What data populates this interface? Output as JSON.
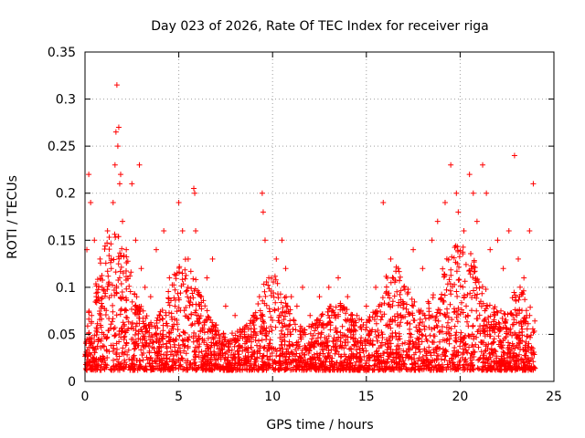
{
  "chart_data": {
    "type": "scatter",
    "title": "Day 023 of 2026, Rate Of TEC Index for receiver riga",
    "xlabel": "GPS time / hours",
    "ylabel": "ROTI / TECUs",
    "xlim": [
      0,
      25
    ],
    "ylim": [
      0,
      0.35
    ],
    "x_ticks": [
      0,
      5,
      10,
      15,
      20,
      25
    ],
    "x_tick_labels": [
      "0",
      "5",
      "10",
      "15",
      "20",
      "25"
    ],
    "y_ticks": [
      0,
      0.05,
      0.1,
      0.15,
      0.2,
      0.25,
      0.3,
      0.35
    ],
    "y_tick_labels": [
      "0",
      "0.05",
      "0.1",
      "0.15",
      "0.2",
      "0.25",
      "0.3",
      "0.35"
    ],
    "grid": true,
    "marker": "plus",
    "marker_color": "#ff0000",
    "series": [
      {
        "name": "ROTI",
        "x": [
          0.1,
          0.2,
          0.3,
          0.35,
          0.5,
          0.6,
          0.8,
          1.0,
          1.2,
          1.4,
          1.5,
          1.6,
          1.65,
          1.7,
          1.75,
          1.8,
          1.85,
          1.9,
          2.0,
          2.2,
          2.5,
          2.7,
          2.9,
          3.0,
          3.2,
          3.5,
          3.8,
          4.2,
          4.5,
          4.8,
          5.0,
          5.2,
          5.5,
          5.8,
          5.85,
          5.9,
          6.2,
          6.5,
          6.8,
          7.0,
          7.5,
          8.0,
          8.5,
          9.0,
          9.3,
          9.45,
          9.5,
          9.6,
          9.8,
          10.2,
          10.5,
          10.7,
          11.0,
          11.3,
          11.6,
          12.0,
          12.5,
          13.0,
          13.5,
          14.0,
          14.5,
          15.0,
          15.5,
          15.9,
          16.3,
          16.7,
          17.0,
          17.5,
          18.0,
          18.5,
          18.8,
          19.2,
          19.5,
          19.8,
          19.9,
          20.2,
          20.5,
          20.7,
          20.9,
          21.2,
          21.4,
          21.6,
          22.0,
          22.3,
          22.6,
          22.9,
          23.1,
          23.4,
          23.7,
          23.9
        ],
        "y": [
          0.14,
          0.22,
          0.19,
          0.07,
          0.15,
          0.09,
          0.13,
          0.05,
          0.16,
          0.12,
          0.19,
          0.23,
          0.265,
          0.315,
          0.25,
          0.27,
          0.21,
          0.22,
          0.17,
          0.14,
          0.21,
          0.15,
          0.23,
          0.12,
          0.1,
          0.09,
          0.14,
          0.16,
          0.11,
          0.08,
          0.19,
          0.16,
          0.13,
          0.205,
          0.2,
          0.16,
          0.09,
          0.11,
          0.13,
          0.06,
          0.08,
          0.07,
          0.05,
          0.06,
          0.09,
          0.2,
          0.18,
          0.15,
          0.11,
          0.13,
          0.15,
          0.12,
          0.09,
          0.08,
          0.1,
          0.07,
          0.09,
          0.1,
          0.11,
          0.09,
          0.07,
          0.08,
          0.1,
          0.19,
          0.13,
          0.12,
          0.1,
          0.14,
          0.12,
          0.15,
          0.17,
          0.19,
          0.23,
          0.2,
          0.18,
          0.16,
          0.22,
          0.2,
          0.17,
          0.23,
          0.2,
          0.14,
          0.15,
          0.12,
          0.16,
          0.24,
          0.13,
          0.11,
          0.16,
          0.21
        ]
      }
    ]
  }
}
